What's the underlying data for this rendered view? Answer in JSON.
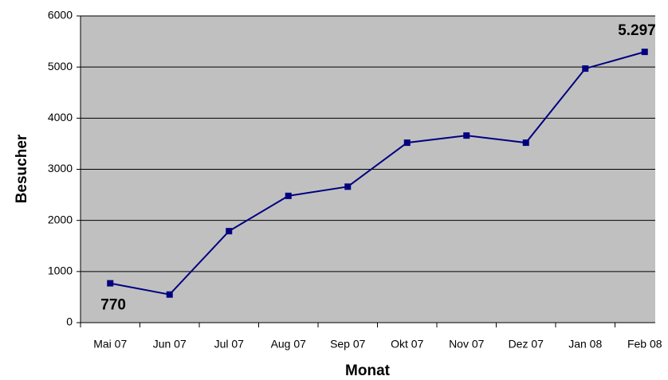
{
  "chart_data": {
    "type": "line",
    "x_label": "Monat",
    "y_label": "Besucher",
    "categories": [
      "Mai 07",
      "Jun 07",
      "Jul 07",
      "Aug 07",
      "Sep 07",
      "Okt 07",
      "Nov 07",
      "Dez 07",
      "Jan 08",
      "Feb 08"
    ],
    "values": [
      770,
      550,
      1790,
      2480,
      2660,
      3520,
      3660,
      3520,
      4970,
      5297
    ],
    "value_labels": [
      "770",
      null,
      null,
      null,
      null,
      null,
      null,
      null,
      null,
      "5.297"
    ],
    "color": "#000080",
    "ylim": [
      0,
      6000
    ],
    "yticks": [
      0,
      1000,
      2000,
      3000,
      4000,
      5000,
      6000
    ],
    "grid": true
  }
}
